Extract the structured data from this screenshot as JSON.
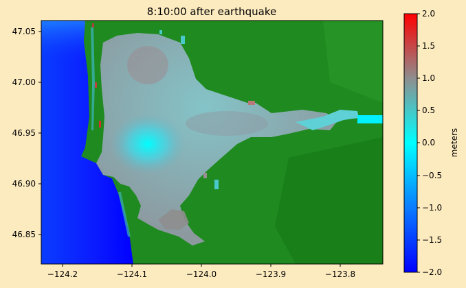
{
  "title": "8:10:00 after earthquake",
  "map": {
    "x_ticks": [
      "−124.2",
      "−124.1",
      "−124.0",
      "−123.9",
      "−123.8"
    ],
    "x_tick_values": [
      -124.2,
      -124.1,
      -124.0,
      -123.9,
      -123.8
    ],
    "y_ticks": [
      "47.05",
      "47.00",
      "46.95",
      "46.90",
      "46.85"
    ],
    "y_tick_values": [
      47.05,
      47.0,
      46.95,
      46.9,
      46.85
    ],
    "xlim": [
      -124.24,
      -123.75
    ],
    "ylim": [
      46.82,
      47.06
    ],
    "land_color": "#1f8a1f",
    "ocean_color": "#0a1aff"
  },
  "colorbar": {
    "label": "meters",
    "ticks": [
      "2.0",
      "1.5",
      "1.0",
      "0.5",
      "0.0",
      "−0.5",
      "−1.0",
      "−1.5",
      "−2.0"
    ],
    "tick_values": [
      2.0,
      1.5,
      1.0,
      0.5,
      0.0,
      -0.5,
      -1.0,
      -1.5,
      -2.0
    ],
    "range": [
      -2.0,
      2.0
    ],
    "colors": [
      "#0000ff",
      "#00ffff",
      "#888888",
      "#ff0000"
    ]
  }
}
